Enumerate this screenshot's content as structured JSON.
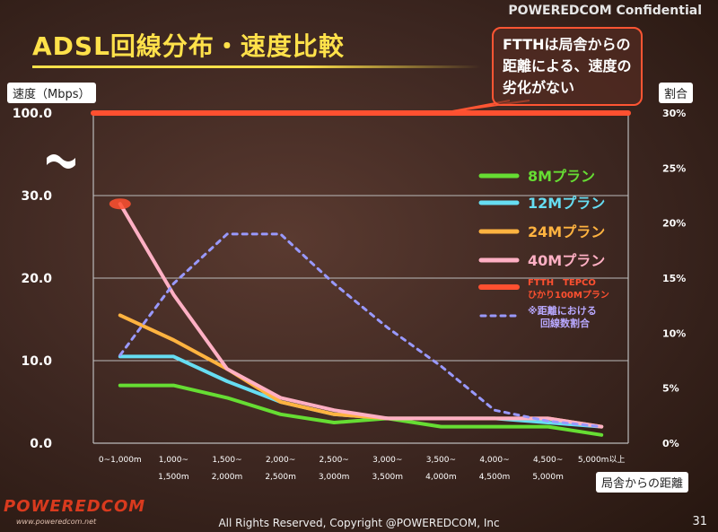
{
  "header": {
    "confidential": "POWEREDCOM Confidential",
    "title": "ADSL回線分布・速度比較"
  },
  "callout": {
    "text": "FTTHは局舎からの距離による、速度の劣化がない"
  },
  "footer": {
    "copyright": "All Rights Reserved, Copyright @POWEREDCOM, Inc",
    "page": "31",
    "logo": "POWEREDCOM",
    "logo_url": "www.poweredcom.net"
  },
  "colors": {
    "grid": "#bbbbbb",
    "plan8": "#66dd33",
    "plan12": "#66ddf2",
    "plan24": "#ffb340",
    "plan40": "#ffb0c4",
    "ftth": "#ff5030",
    "dist": "#9999ff"
  },
  "chart_data": {
    "type": "line",
    "ylabel": "速度（Mbps）",
    "y2label": "割合",
    "xlabel": "局舎からの距離",
    "y_ticks": [
      "100.0",
      "30.0",
      "20.0",
      "10.0",
      "0.0"
    ],
    "y2_ticks": [
      "30%",
      "25%",
      "20%",
      "15%",
      "10%",
      "5%",
      "0%"
    ],
    "y_axis": {
      "scale": "broken",
      "lower_range": [
        0,
        30
      ],
      "upper_value": 100
    },
    "y2lim": [
      0,
      30
    ],
    "categories": [
      [
        "0~1,000m",
        ""
      ],
      [
        "1,000~",
        "1,500m"
      ],
      [
        "1,500~",
        "2,000m"
      ],
      [
        "2,000~",
        "2,500m"
      ],
      [
        "2,500~",
        "3,000m"
      ],
      [
        "3,000~",
        "3,500m"
      ],
      [
        "3,500~",
        "4,000m"
      ],
      [
        "4,000~",
        "4,500m"
      ],
      [
        "4,500~",
        "5,000m"
      ],
      [
        "5,000m以上",
        ""
      ]
    ],
    "legend_position": "right",
    "series": [
      {
        "name": "8Mプラン",
        "color": "#66dd33",
        "axis": "left",
        "style": "solid",
        "values": [
          7.0,
          7.0,
          5.5,
          3.5,
          2.5,
          3.0,
          2.0,
          2.0,
          2.0,
          1.0
        ]
      },
      {
        "name": "12Mプラン",
        "color": "#66ddf2",
        "axis": "left",
        "style": "solid",
        "values": [
          10.5,
          10.5,
          7.5,
          5.0,
          3.5,
          3.0,
          3.0,
          3.0,
          2.5,
          2.0
        ]
      },
      {
        "name": "24Mプラン",
        "color": "#ffb340",
        "axis": "left",
        "style": "solid",
        "values": [
          15.5,
          12.5,
          9.0,
          5.0,
          3.5,
          3.0,
          3.0,
          3.0,
          3.0,
          2.0
        ]
      },
      {
        "name": "40Mプラン",
        "color": "#ffb0c4",
        "axis": "left",
        "style": "solid",
        "values": [
          29.0,
          18.0,
          9.0,
          5.5,
          4.0,
          3.0,
          3.0,
          3.0,
          3.0,
          2.0
        ]
      },
      {
        "name": "FTTH　TEPCO ひかり100Mプラン",
        "color": "#ff5030",
        "axis": "left",
        "style": "thick",
        "values": [
          100,
          100,
          100,
          100,
          100,
          100,
          100,
          100,
          100,
          100
        ]
      },
      {
        "name": "※距離における 回線数割合",
        "color": "#9999ff",
        "axis": "right",
        "style": "dashed",
        "values": [
          8.0,
          14.5,
          19.0,
          19.0,
          14.5,
          10.5,
          7.0,
          3.0,
          2.0,
          1.5
        ]
      }
    ]
  }
}
